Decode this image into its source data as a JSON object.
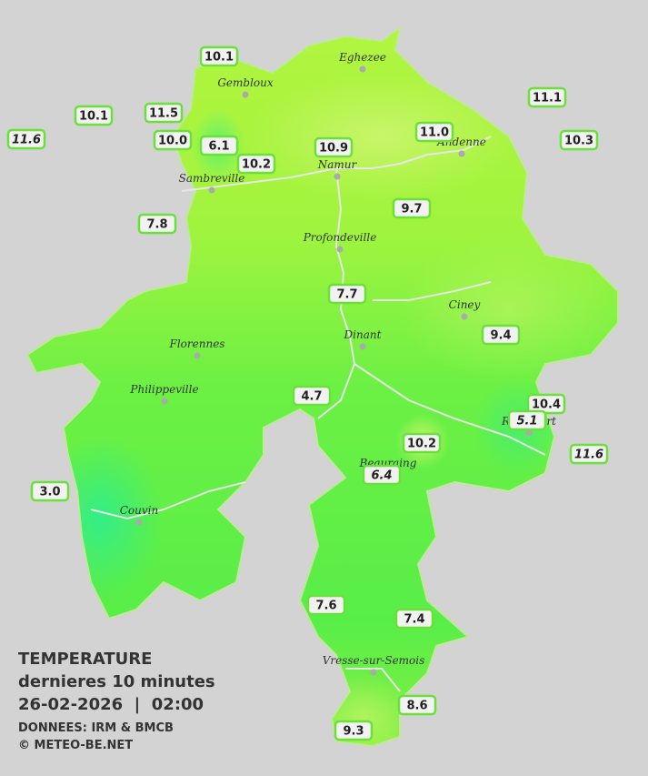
{
  "title": {
    "line1": "TEMPERATURE",
    "line2": "dernieres 10 minutes",
    "line3": "26-02-2026  |  02:00",
    "source": "DONNEES: IRM & BMCB",
    "copyright": "© METEO-BE.NET"
  },
  "cities": [
    "Eghezee",
    "Gembloux",
    "Andenne",
    "Namur",
    "Sambreville",
    "Profondeville",
    "Ciney",
    "Dinant",
    "Florennes",
    "Philippeville",
    "Rochefort",
    "Beauraing",
    "Couvin",
    "Vresse-sur-Semois"
  ],
  "stations": [
    "10.1",
    "10.1",
    "11.5",
    "11.6",
    "10.0",
    "6.1",
    "10.2",
    "10.9",
    "11.0",
    "11.1",
    "10.3",
    "7.8",
    "9.7",
    "7.7",
    "9.4",
    "4.7",
    "10.4",
    "5.1",
    "10.2",
    "11.6",
    "3.0",
    "6.4",
    "7.6",
    "7.4",
    "8.6",
    "9.3"
  ]
}
